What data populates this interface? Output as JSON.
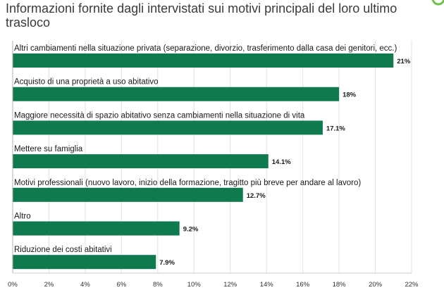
{
  "chart_data": {
    "type": "bar",
    "orientation": "horizontal",
    "title": "Informazioni fornite dagli intervistati sui motivi principali del loro ultimo trasloco",
    "categories": [
      "Altri cambiamenti nella situazione privata (separazione, divorzio, trasferimento dalla casa dei genitori, ecc.)",
      "Acquisto di una proprietà a uso abitativo",
      "Maggiore necessità di spazio abitativo senza cambiamenti nella situazione di vita",
      "Mettere su famiglia",
      "Motivi professionali (nuovo lavoro, inizio della formazione, tragitto più breve per andare al lavoro)",
      "Altro",
      "Riduzione dei costi abitativi"
    ],
    "values": [
      21,
      18,
      17.1,
      14.1,
      12.7,
      9.2,
      7.9
    ],
    "value_labels": [
      "21%",
      "18%",
      "17.1%",
      "14.1%",
      "12.7%",
      "9.2%",
      "7.9%"
    ],
    "xlim": [
      0,
      22
    ],
    "xticks": [
      0,
      2,
      4,
      6,
      8,
      10,
      12,
      14,
      16,
      18,
      20,
      22
    ],
    "xtick_labels": [
      "0%",
      "2%",
      "4%",
      "6%",
      "8%",
      "10%",
      "12%",
      "14%",
      "16%",
      "18%",
      "20%",
      "22%"
    ],
    "grid": true,
    "bar_color": "#0e7a4e",
    "grid_color": "#e2e2e2"
  },
  "logo": {
    "icon": "green-circle-logo",
    "color": "#6cc04a"
  }
}
